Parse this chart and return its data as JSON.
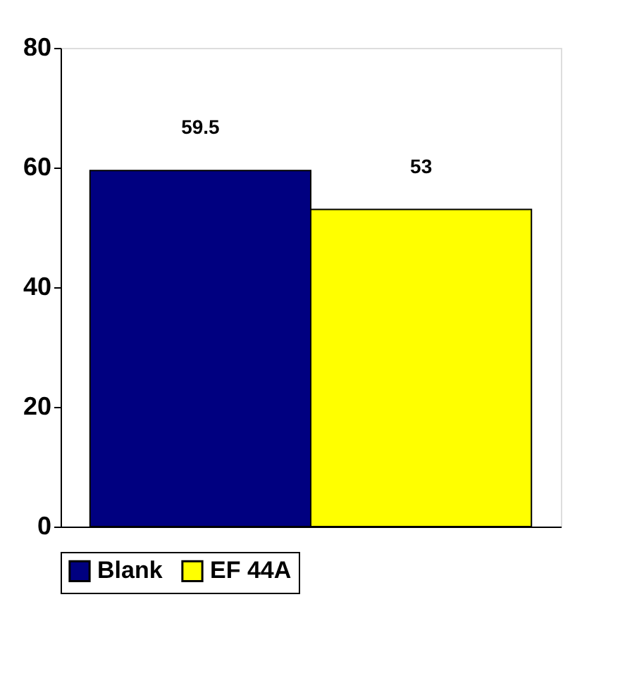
{
  "chart_data": {
    "type": "bar",
    "categories": [
      null
    ],
    "series": [
      {
        "name": "Blank",
        "color": "#000080",
        "values": [
          59.5
        ]
      },
      {
        "name": "EF 44A",
        "color": "#ffff00",
        "values": [
          53
        ]
      }
    ],
    "ylim": [
      0,
      80
    ],
    "yticks": [
      0,
      20,
      40,
      60,
      80
    ],
    "grid": false,
    "legend": "bottom",
    "data_labels": true
  }
}
